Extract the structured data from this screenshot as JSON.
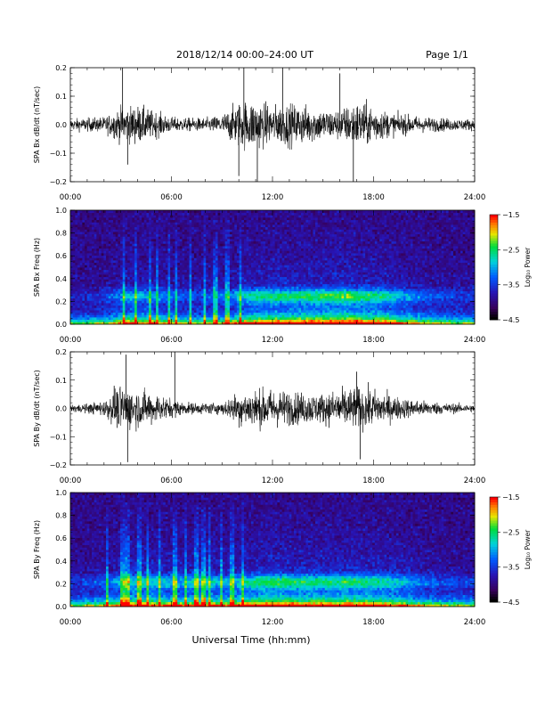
{
  "header": {
    "date_range": "2018/12/14  00:00–24:00 UT",
    "page": "Page 1/1"
  },
  "footer": {
    "xlabel": "Universal Time (hh:mm)"
  },
  "time_ticks": [
    "00:00",
    "06:00",
    "12:00",
    "18:00",
    "24:00"
  ],
  "chart_data": [
    {
      "type": "line",
      "ylabel": "SPA Bx dB/dt (nT/sec)",
      "xlim": [
        0,
        24
      ],
      "ylim": [
        -0.2,
        0.2
      ],
      "yticks": [
        "0.2",
        "0.1",
        "0.0",
        "−0.1",
        "−0.2"
      ],
      "yticks_values": [
        0.2,
        0.1,
        0.0,
        -0.1,
        -0.2
      ],
      "envelope": {
        "hours": [
          0,
          1,
          2,
          3,
          4,
          5,
          6,
          7,
          8,
          9,
          10,
          11,
          12,
          13,
          14,
          15,
          16,
          17,
          18,
          19,
          20,
          21,
          22,
          23,
          24
        ],
        "amplitude": [
          0.03,
          0.035,
          0.04,
          0.09,
          0.1,
          0.07,
          0.04,
          0.035,
          0.035,
          0.05,
          0.12,
          0.13,
          0.1,
          0.11,
          0.1,
          0.08,
          0.08,
          0.12,
          0.1,
          0.06,
          0.05,
          0.04,
          0.035,
          0.03,
          0.03
        ]
      },
      "spikes": [
        [
          3.1,
          0.2
        ],
        [
          3.4,
          -0.14
        ],
        [
          10.3,
          0.2
        ],
        [
          10.0,
          -0.18
        ],
        [
          11.1,
          -0.2
        ],
        [
          12.6,
          0.2
        ],
        [
          16.0,
          0.18
        ],
        [
          16.8,
          -0.2
        ]
      ]
    },
    {
      "type": "heatmap",
      "ylabel": "SPA Bx Freq (Hz)",
      "xlim": [
        0,
        24
      ],
      "ylim": [
        0.0,
        1.0
      ],
      "yticks": [
        "1.0",
        "0.8",
        "0.6",
        "0.4",
        "0.2",
        "0.0"
      ],
      "yticks_values": [
        1.0,
        0.8,
        0.6,
        0.4,
        0.2,
        0.0
      ],
      "colorbar": {
        "label": "Log₁₀ Power",
        "ticks": [
          "−1.5",
          "−2.5",
          "−3.5",
          "−4.5"
        ],
        "range": [
          -4.5,
          -1.5
        ]
      },
      "activity": [
        0.15,
        0.2,
        0.35,
        0.6,
        0.55,
        0.45,
        0.35,
        0.3,
        0.35,
        0.45,
        0.7,
        0.75,
        0.8,
        0.8,
        0.85,
        0.85,
        0.9,
        0.8,
        0.75,
        0.6,
        0.45,
        0.35,
        0.3,
        0.25
      ],
      "vertical_bursts": [
        3.2,
        3.9,
        4.7,
        5.2,
        5.9,
        6.3,
        7.1,
        8.0,
        8.6,
        9.3,
        10.1
      ],
      "band_hz": 0.25
    },
    {
      "type": "line",
      "ylabel": "SPA By dB/dt (nT/sec)",
      "xlim": [
        0,
        24
      ],
      "ylim": [
        -0.2,
        0.2
      ],
      "yticks": [
        "0.2",
        "0.1",
        "0.0",
        "−0.1",
        "−0.2"
      ],
      "yticks_values": [
        0.2,
        0.1,
        0.0,
        -0.1,
        -0.2
      ],
      "envelope": {
        "hours": [
          0,
          1,
          2,
          3,
          4,
          5,
          6,
          7,
          8,
          9,
          10,
          11,
          12,
          13,
          14,
          15,
          16,
          17,
          18,
          19,
          20,
          21,
          22,
          23,
          24
        ],
        "amplitude": [
          0.02,
          0.025,
          0.04,
          0.12,
          0.1,
          0.08,
          0.05,
          0.03,
          0.03,
          0.03,
          0.09,
          0.1,
          0.1,
          0.09,
          0.08,
          0.08,
          0.1,
          0.11,
          0.1,
          0.07,
          0.05,
          0.04,
          0.03,
          0.025,
          0.02
        ]
      },
      "spikes": [
        [
          3.3,
          0.19
        ],
        [
          3.4,
          -0.19
        ],
        [
          6.2,
          0.2
        ],
        [
          2.6,
          0.08
        ],
        [
          17.0,
          0.13
        ],
        [
          17.2,
          -0.18
        ]
      ]
    },
    {
      "type": "heatmap",
      "ylabel": "SPA By Freq (Hz)",
      "xlim": [
        0,
        24
      ],
      "ylim": [
        0.0,
        1.0
      ],
      "yticks": [
        "1.0",
        "0.8",
        "0.6",
        "0.4",
        "0.2",
        "0.0"
      ],
      "yticks_values": [
        1.0,
        0.8,
        0.6,
        0.4,
        0.2,
        0.0
      ],
      "colorbar": {
        "label": "Log₁₀ Power",
        "ticks": [
          "−1.5",
          "−2.5",
          "−3.5",
          "−4.5"
        ],
        "range": [
          -4.5,
          -1.5
        ]
      },
      "activity": [
        0.25,
        0.3,
        0.45,
        0.65,
        0.65,
        0.6,
        0.55,
        0.6,
        0.6,
        0.55,
        0.7,
        0.8,
        0.8,
        0.75,
        0.75,
        0.75,
        0.8,
        0.75,
        0.7,
        0.6,
        0.45,
        0.35,
        0.3,
        0.25
      ],
      "vertical_bursts": [
        2.2,
        3.1,
        3.4,
        4.1,
        4.6,
        5.3,
        6.2,
        6.8,
        7.5,
        7.9,
        8.3,
        9.0,
        9.6,
        10.2
      ],
      "band_hz": 0.22
    }
  ]
}
